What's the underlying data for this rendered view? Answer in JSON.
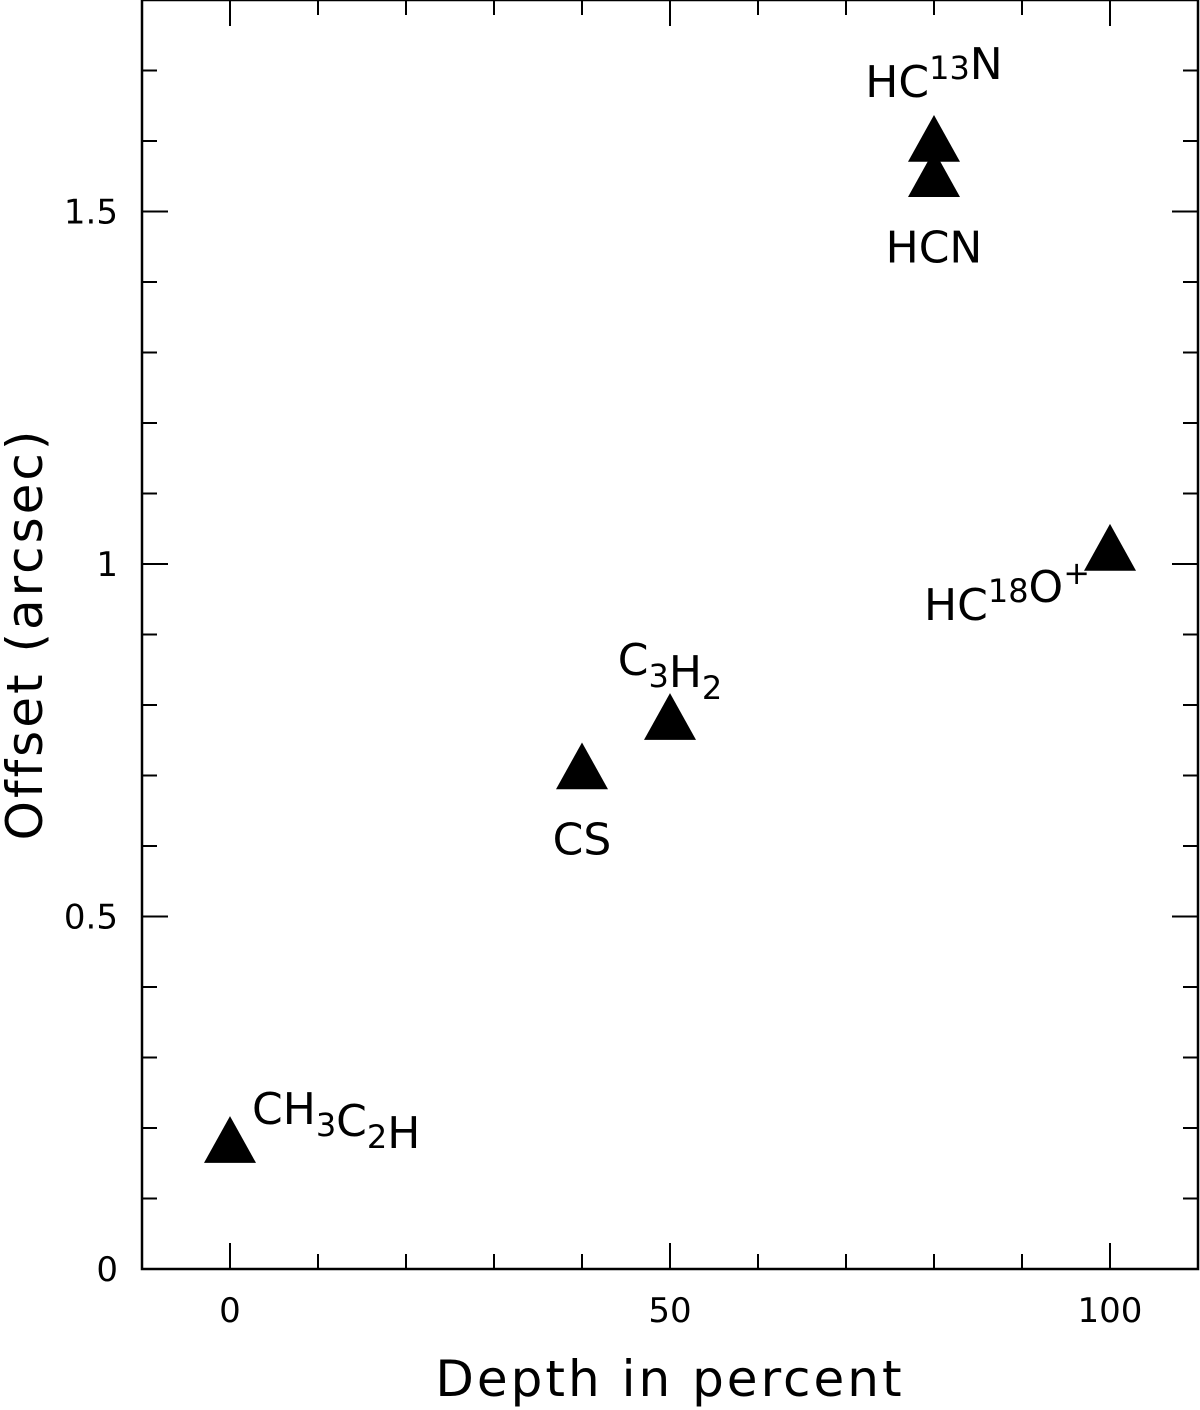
{
  "chart_data": {
    "type": "scatter",
    "title": "",
    "xlabel": "Depth in percent",
    "ylabel": "Offset (arcsec)",
    "xlim": [
      -10,
      110
    ],
    "ylim": [
      0,
      1.8
    ],
    "x_ticks": [
      0,
      50,
      100
    ],
    "x_tick_labels": [
      "0",
      "50",
      "100"
    ],
    "y_ticks": [
      0,
      0.5,
      1,
      1.5
    ],
    "y_tick_labels": [
      "0",
      "0.5",
      "1",
      "1.5"
    ],
    "x_minor_step": 10,
    "y_minor_step": 0.1,
    "grid": false,
    "marker": "filled-triangle",
    "marker_color": "#000000",
    "points": [
      {
        "id": "ch3c2h",
        "x": 0,
        "y": 0.18,
        "label_parts": [
          {
            "t": "CH"
          },
          {
            "t": "3",
            "sub": true
          },
          {
            "t": "C"
          },
          {
            "t": "2",
            "sub": true
          },
          {
            "t": "H"
          }
        ],
        "label_position": "upper-right"
      },
      {
        "id": "cs",
        "x": 40,
        "y": 0.71,
        "label_parts": [
          {
            "t": "CS"
          }
        ],
        "label_position": "below"
      },
      {
        "id": "c3h2",
        "x": 50,
        "y": 0.78,
        "label_parts": [
          {
            "t": "C"
          },
          {
            "t": "3",
            "sub": true
          },
          {
            "t": "H"
          },
          {
            "t": "2",
            "sub": true
          }
        ],
        "label_position": "above"
      },
      {
        "id": "hc13n",
        "x": 80,
        "y": 1.6,
        "label_parts": [
          {
            "t": "HC"
          },
          {
            "t": "13",
            "sup": true
          },
          {
            "t": "N"
          }
        ],
        "label_position": "above"
      },
      {
        "id": "hcn",
        "x": 80,
        "y": 1.55,
        "label_parts": [
          {
            "t": "HCN"
          }
        ],
        "label_position": "below"
      },
      {
        "id": "hc18o",
        "x": 100,
        "y": 1.02,
        "label_parts": [
          {
            "t": "HC"
          },
          {
            "t": "18",
            "sup": true
          },
          {
            "t": "O"
          },
          {
            "t": "+",
            "sup": true
          }
        ],
        "label_position": "lower-left"
      }
    ]
  }
}
